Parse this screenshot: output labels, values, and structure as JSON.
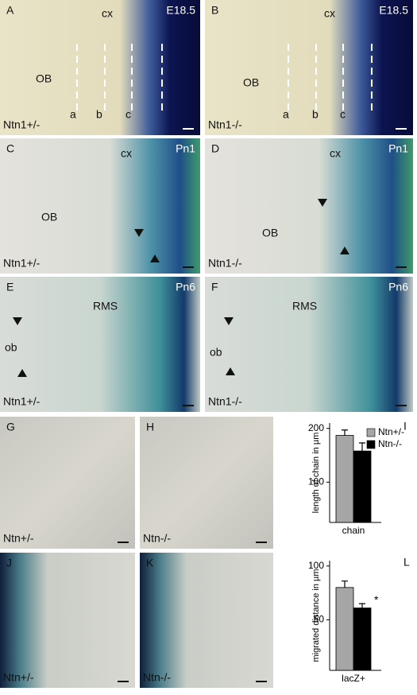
{
  "panels": [
    {
      "letter": "A",
      "stage": "E18.5",
      "genotype": "Ntn1+/-",
      "labels": [
        "cx",
        "OB",
        "a",
        "b",
        "c"
      ]
    },
    {
      "letter": "B",
      "stage": "E18.5",
      "genotype": "Ntn1-/-",
      "labels": [
        "cx",
        "OB",
        "a",
        "b",
        "c"
      ]
    },
    {
      "letter": "C",
      "stage": "Pn1",
      "genotype": "Ntn1+/-",
      "labels": [
        "cx",
        "OB"
      ]
    },
    {
      "letter": "D",
      "stage": "Pn1",
      "genotype": "Ntn1-/-",
      "labels": [
        "cx",
        "OB"
      ]
    },
    {
      "letter": "E",
      "stage": "Pn6",
      "genotype": "Ntn1+/-",
      "labels": [
        "RMS",
        "ob"
      ]
    },
    {
      "letter": "F",
      "stage": "Pn6",
      "genotype": "Ntn1-/-",
      "labels": [
        "RMS",
        "ob"
      ]
    },
    {
      "letter": "G",
      "genotype": "Ntn+/-"
    },
    {
      "letter": "H",
      "genotype": "Ntn-/-"
    },
    {
      "letter": "J",
      "genotype": "Ntn+/-"
    },
    {
      "letter": "K",
      "genotype": "Ntn-/-"
    }
  ],
  "chart_data": [
    {
      "type": "bar",
      "label": "I",
      "ylabel": "length of chain in µm",
      "categories": [
        "chain"
      ],
      "series": [
        {
          "name": "Ntn+/-",
          "color": "#a6a6a6",
          "values": [
            187
          ],
          "errors": [
            10
          ]
        },
        {
          "name": "Ntn-/-",
          "color": "#000000",
          "values": [
            158
          ],
          "errors": [
            15
          ]
        }
      ],
      "ylim": [
        25,
        210
      ],
      "yticks": [
        100,
        200
      ],
      "legend": "upper right"
    },
    {
      "type": "bar",
      "label": "L",
      "ylabel": "migrated distance in µm",
      "categories": [
        "lacZ+"
      ],
      "series": [
        {
          "name": "Ntn+/-",
          "color": "#a6a6a6",
          "values": [
            80
          ],
          "errors": [
            6
          ]
        },
        {
          "name": "Ntn-/-",
          "color": "#000000",
          "values": [
            61
          ],
          "errors": [
            4
          ]
        }
      ],
      "ylim": [
        3,
        105
      ],
      "yticks": [
        50,
        100
      ],
      "annotations": [
        "*"
      ]
    }
  ]
}
